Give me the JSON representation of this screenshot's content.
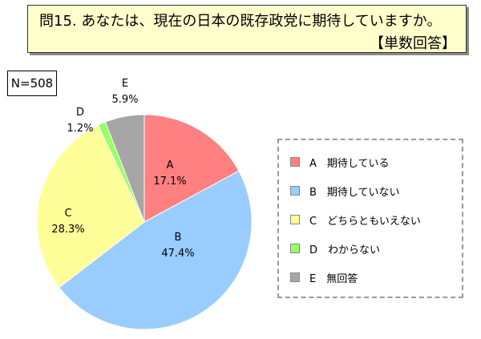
{
  "question": {
    "text": "問15. あなたは、現在の日本の既存政党に期待していますか。",
    "answer_type": "【単数回答】"
  },
  "sample": {
    "label": "N=508"
  },
  "colors": {
    "question_background": "#ffffcc",
    "slices": [
      "#ff8080",
      "#99ccff",
      "#ffff99",
      "#99ff66",
      "#a6a6a6"
    ]
  },
  "chart_data": {
    "type": "pie",
    "start": "12 o'clock",
    "direction": "clockwise",
    "slices": [
      {
        "letter": "A",
        "legend": "期待している",
        "value": 17.1,
        "display": "17.1%"
      },
      {
        "letter": "B",
        "legend": "期待していない",
        "value": 47.4,
        "display": "47.4%"
      },
      {
        "letter": "C",
        "legend": "どちらともいえない",
        "value": 28.3,
        "display": "28.3%"
      },
      {
        "letter": "D",
        "legend": "わからない",
        "value": 1.2,
        "display": "1.2%"
      },
      {
        "letter": "E",
        "legend": "無回答",
        "value": 5.9,
        "display": "5.9%"
      }
    ],
    "legend_placement": "right"
  }
}
